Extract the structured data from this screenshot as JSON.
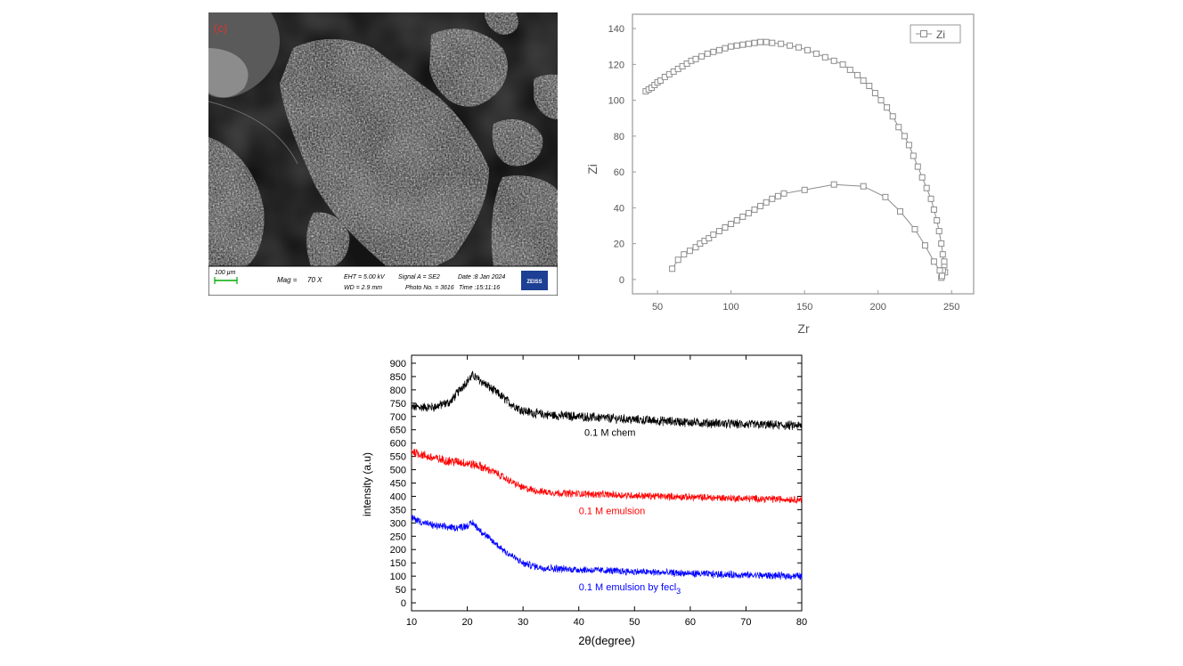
{
  "sem": {
    "panel_label": "(c)",
    "scale_bar": "100 µm",
    "mag_label": "Mag =",
    "mag_value": "70 X",
    "eht": "EHT = 5.00 kV",
    "wd": "WD = 2.9 mm",
    "signal": "Signal A = SE2",
    "photo": "Photo No. = 3616",
    "date": "Date :8 Jan 2024",
    "time": "Time :15:11:16",
    "logo": "ZEISS"
  },
  "chart_data": [
    {
      "type": "scatter",
      "xlabel": "Zr",
      "ylabel": "Zi",
      "xlim": [
        33,
        265
      ],
      "ylim": [
        -8,
        148
      ],
      "xticks": [
        50,
        100,
        150,
        200,
        250
      ],
      "yticks": [
        0,
        20,
        40,
        60,
        80,
        100,
        120,
        140
      ],
      "legend": {
        "position": "top-right",
        "entries": [
          "Zi"
        ]
      },
      "colors": {
        "series": "#8c8c8c",
        "frame": "#9a9a9a"
      },
      "series": [
        {
          "name": "Zi",
          "x": [
            42,
            44,
            46,
            48,
            50,
            52,
            55,
            58,
            61,
            64,
            67,
            70,
            73,
            76,
            80,
            84,
            88,
            92,
            96,
            100,
            104,
            108,
            112,
            116,
            120,
            124,
            128,
            134,
            140,
            146,
            152,
            158,
            164,
            170,
            176,
            181,
            186,
            190,
            194,
            198,
            202,
            206,
            210,
            214,
            218,
            221,
            224,
            227,
            230,
            233,
            236,
            238,
            240,
            241.5,
            243,
            244,
            245,
            245.5,
            245,
            244,
            243
          ],
          "y": [
            105,
            106,
            107,
            108.5,
            110,
            111,
            113,
            114.5,
            116,
            117.5,
            119,
            120.5,
            122,
            123,
            124.5,
            126,
            127,
            128,
            129,
            130,
            130.5,
            131,
            131.5,
            132,
            132.5,
            132.5,
            132,
            131.5,
            130.5,
            129.5,
            128,
            126,
            124,
            122,
            120,
            117,
            114,
            111,
            108,
            104,
            100,
            96,
            91,
            85,
            80,
            75,
            69,
            63,
            57,
            51,
            45,
            39,
            33,
            27,
            20,
            14,
            8,
            4,
            10,
            5,
            1
          ]
        },
        {
          "name": "",
          "x": [
            60,
            64,
            68,
            72,
            76,
            79,
            82,
            85,
            88,
            92,
            96,
            100,
            104,
            108,
            112,
            116,
            120,
            124,
            128,
            132,
            136,
            150,
            170,
            190,
            205,
            215,
            225,
            232,
            238,
            242,
            243.5
          ],
          "y": [
            6,
            11,
            14,
            16,
            18,
            20,
            21.5,
            23,
            25,
            27,
            29,
            31,
            33,
            35,
            37,
            39,
            41,
            43,
            45,
            46.5,
            48,
            50,
            53,
            52,
            46,
            38,
            28,
            19,
            10,
            5,
            2
          ]
        }
      ]
    },
    {
      "type": "line",
      "xlabel": "2θ(degree)",
      "ylabel": "intensity (a.u)",
      "xlim": [
        10,
        80
      ],
      "ylim": [
        -30,
        930
      ],
      "xticks": [
        10,
        20,
        30,
        40,
        50,
        60,
        70,
        80
      ],
      "yticks": [
        0,
        50,
        100,
        150,
        200,
        250,
        300,
        350,
        400,
        450,
        500,
        550,
        600,
        650,
        700,
        750,
        800,
        850,
        900
      ],
      "series": [
        {
          "name": "0.1 M chem",
          "color": "#000000",
          "x": [
            10,
            14,
            17,
            19,
            21,
            23,
            26,
            28,
            30,
            32,
            35,
            40,
            50,
            60,
            70,
            80
          ],
          "y": [
            735,
            735,
            755,
            810,
            855,
            825,
            778,
            745,
            722,
            712,
            705,
            700,
            688,
            678,
            670,
            665
          ],
          "label_x": 41,
          "label_y": 627
        },
        {
          "name": "0.1 M emulsion",
          "color": "#ff0000",
          "x": [
            10,
            13,
            16,
            19,
            22,
            25,
            27,
            30,
            33,
            36,
            40,
            50,
            60,
            70,
            80
          ],
          "y": [
            570,
            548,
            535,
            528,
            515,
            490,
            465,
            432,
            418,
            413,
            410,
            403,
            397,
            392,
            388
          ],
          "label_x": 40,
          "label_y": 333
        },
        {
          "name": "0.1 M emulsion by fecl3",
          "color": "#0000ff",
          "x": [
            10,
            12,
            14,
            16,
            18,
            20,
            21,
            22,
            24,
            27,
            30,
            33,
            36,
            40,
            50,
            60,
            70,
            80
          ],
          "y": [
            320,
            302,
            290,
            285,
            282,
            290,
            300,
            278,
            240,
            190,
            148,
            133,
            128,
            125,
            117,
            110,
            104,
            100
          ],
          "label_x": 40,
          "label_y": 47,
          "label_main": "0.1 M emulsion by fecl",
          "label_sub": "3"
        }
      ]
    }
  ]
}
